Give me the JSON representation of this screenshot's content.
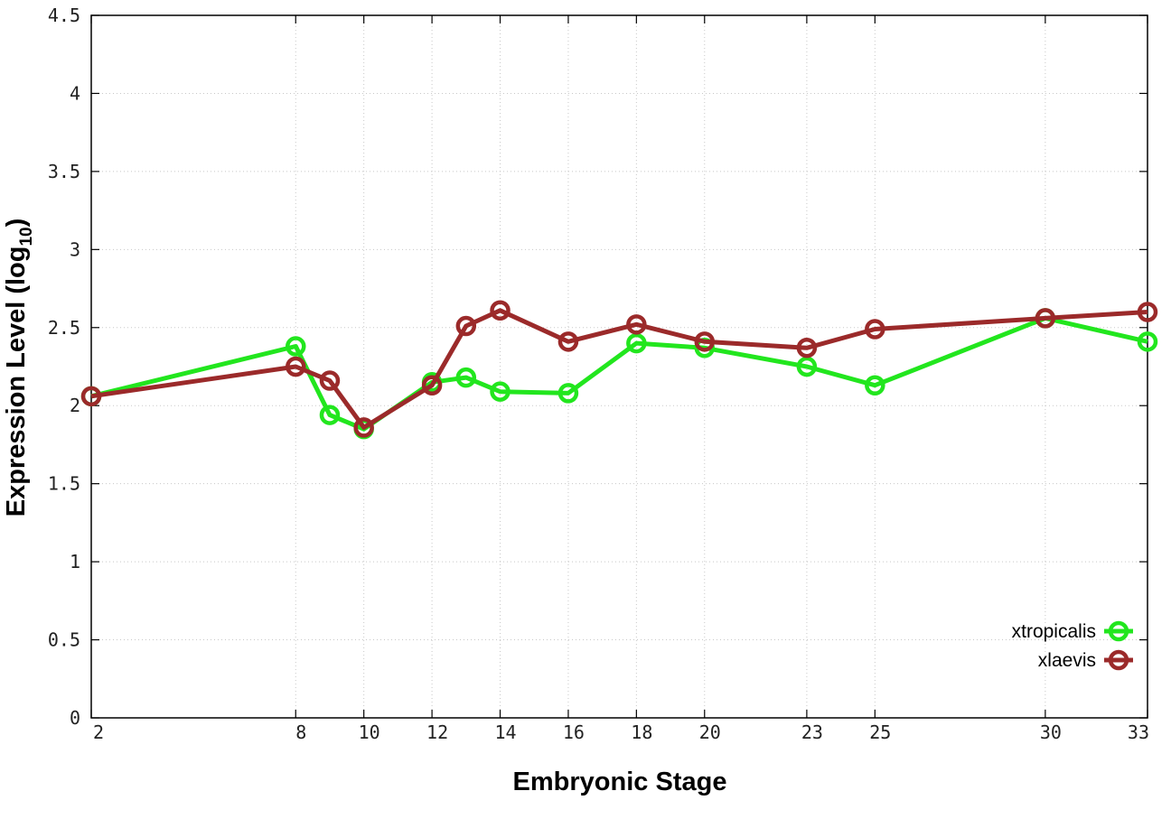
{
  "chart_data": {
    "type": "line",
    "title": "",
    "xlabel": "Embryonic Stage",
    "ylabel_main": "Expression Level (log",
    "ylabel_sub": "10",
    "ylabel_end": ")",
    "ylim": [
      0,
      4.5
    ],
    "xlim": [
      2,
      33
    ],
    "x_ticks": [
      2,
      8,
      10,
      12,
      14,
      16,
      18,
      20,
      23,
      25,
      30,
      33
    ],
    "y_ticks": [
      0,
      0.5,
      1,
      1.5,
      2,
      2.5,
      3,
      3.5,
      4,
      4.5
    ],
    "y_tick_labels": [
      "0",
      "0.5",
      "1",
      "1.5",
      "2",
      "2.5",
      "3",
      "3.5",
      "4",
      "4.5"
    ],
    "grid": true,
    "legend_position": "bottom-right",
    "series": [
      {
        "name": "xtropicalis",
        "color": "#22e61e",
        "x": [
          2,
          8,
          9,
          10,
          12,
          13,
          14,
          16,
          18,
          20,
          23,
          25,
          30,
          33
        ],
        "values": [
          2.06,
          2.38,
          1.94,
          1.85,
          2.15,
          2.18,
          2.09,
          2.08,
          2.4,
          2.37,
          2.25,
          2.13,
          2.56,
          2.41
        ]
      },
      {
        "name": "xlaevis",
        "color": "#9b2a2a",
        "x": [
          2,
          8,
          9,
          10,
          12,
          13,
          14,
          16,
          18,
          20,
          23,
          25,
          30,
          33
        ],
        "values": [
          2.06,
          2.25,
          2.16,
          1.86,
          2.13,
          2.51,
          2.61,
          2.41,
          2.52,
          2.41,
          2.37,
          2.49,
          2.56,
          2.6
        ]
      }
    ]
  }
}
